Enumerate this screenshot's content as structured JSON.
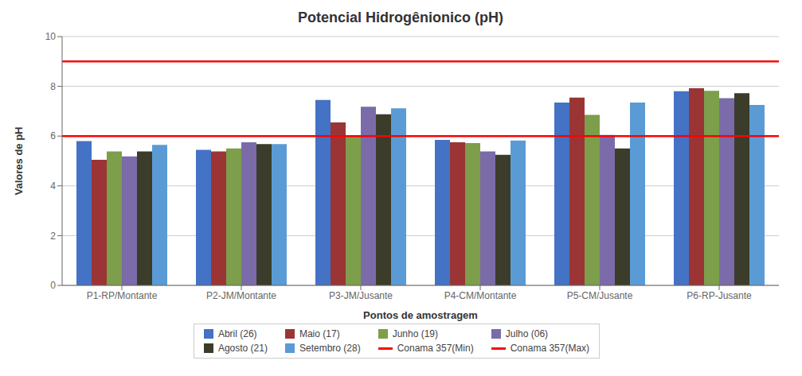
{
  "chart_data": {
    "type": "bar",
    "title": "Potencial Hidrogênionico (pH)",
    "xlabel": "Pontos de amostragem",
    "ylabel": "Valores de pH",
    "categories": [
      "P1-RP/Montante",
      "P2-JM/Montante",
      "P3-JM/Jusante",
      "P4-CM/Montante",
      "P5-CM/Jusante",
      "P6-RP-Jusante"
    ],
    "series": [
      {
        "name": "Abril (26)",
        "color": "#4472C4",
        "values": [
          5.8,
          5.45,
          7.45,
          5.85,
          7.35,
          7.8
        ]
      },
      {
        "name": "Maio (17)",
        "color": "#9B3535",
        "values": [
          5.05,
          5.38,
          6.55,
          5.75,
          7.55,
          7.92
        ]
      },
      {
        "name": "Junho (19)",
        "color": "#7D9E4A",
        "values": [
          5.38,
          5.5,
          6.0,
          5.72,
          6.85,
          7.82
        ]
      },
      {
        "name": "Julho (06)",
        "color": "#7B6BA8",
        "values": [
          5.18,
          5.75,
          7.18,
          5.38,
          6.05,
          7.52
        ]
      },
      {
        "name": "Agosto (21)",
        "color": "#3C3C2A",
        "values": [
          5.38,
          5.68,
          6.88,
          5.25,
          5.5,
          7.72
        ]
      },
      {
        "name": "Setembro (28)",
        "color": "#5B9BD5",
        "values": [
          5.65,
          5.68,
          7.12,
          5.82,
          7.35,
          7.25
        ]
      }
    ],
    "reference_lines": [
      {
        "name": "Conama 357(Min)",
        "value": 6.0,
        "color": "red"
      },
      {
        "name": "Conama 357(Max)",
        "value": 9.0,
        "color": "red"
      }
    ],
    "ylim": [
      0,
      10
    ],
    "yticks": [
      0,
      2,
      4,
      6,
      8,
      10
    ],
    "grid": true,
    "legend": "bottom"
  }
}
